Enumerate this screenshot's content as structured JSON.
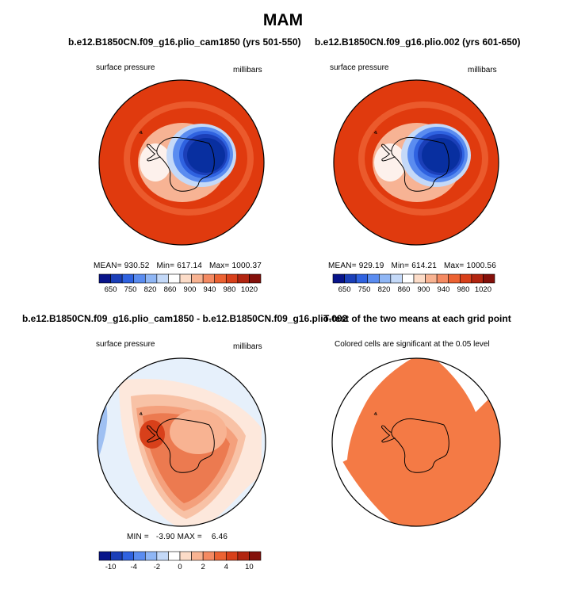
{
  "main_title": "MAM",
  "colors": {
    "ocean": "#e03a0e",
    "ring": "#eb5a2c",
    "land_white": "#fdf1ec",
    "ant_core": "#082fa0",
    "sig_fill": "#f47a45",
    "coast": "#000000"
  },
  "chart_data": [
    {
      "type": "heatmap",
      "title": "b.e12.B1850CN.f09_g16.plio_cam1850 (yrs 501-550)",
      "left_label": "surface pressure",
      "right_label": "millibars",
      "stats": {
        "mean_label": "MEAN=",
        "mean": "930.52",
        "min_label": "Min=",
        "min": "617.14",
        "max_label": "Max=",
        "max": "1000.37"
      },
      "colorbar": {
        "colors": [
          "#08148a",
          "#1b3fb8",
          "#2f62e0",
          "#5a8cf0",
          "#8fb6f5",
          "#c4d9f8",
          "#ffffff",
          "#fcdcc8",
          "#f8b392",
          "#f48a62",
          "#ec6232",
          "#d8401a",
          "#b22510",
          "#84100a"
        ],
        "ticks": [
          "650",
          "750",
          "820",
          "860",
          "900",
          "940",
          "980",
          "1020"
        ]
      }
    },
    {
      "type": "heatmap",
      "title": "b.e12.B1850CN.f09_g16.plio.002 (yrs 601-650)",
      "left_label": "surface pressure",
      "right_label": "millibars",
      "stats": {
        "mean_label": "MEAN=",
        "mean": "929.19",
        "min_label": "Min=",
        "min": "614.21",
        "max_label": "Max=",
        "max": "1000.56"
      },
      "colorbar": {
        "colors": [
          "#08148a",
          "#1b3fb8",
          "#2f62e0",
          "#5a8cf0",
          "#8fb6f5",
          "#c4d9f8",
          "#ffffff",
          "#fcdcc8",
          "#f8b392",
          "#f48a62",
          "#ec6232",
          "#d8401a",
          "#b22510",
          "#84100a"
        ],
        "ticks": [
          "650",
          "750",
          "820",
          "860",
          "900",
          "940",
          "980",
          "1020"
        ]
      }
    },
    {
      "type": "heatmap",
      "title": "b.e12.B1850CN.f09_g16.plio_cam1850 - b.e12.B1850CN.f09_g16.plio.002",
      "left_label": "surface pressure",
      "right_label": "millibars",
      "stats": {
        "min_label": "MIN =",
        "min": "-3.90",
        "max_label": "MAX =",
        "max": "6.46"
      },
      "colorbar": {
        "colors": [
          "#08148a",
          "#1b3fb8",
          "#2f62e0",
          "#5a8cf0",
          "#8fb6f5",
          "#c4d9f8",
          "#ffffff",
          "#fcdcc8",
          "#f8b392",
          "#f48a62",
          "#ec6232",
          "#d8401a",
          "#b22510",
          "#84100a"
        ],
        "ticks": [
          "-10",
          "-4",
          "-2",
          "0",
          "2",
          "4",
          "10"
        ]
      }
    },
    {
      "type": "heatmap",
      "title": "T-test of the two means at each grid point",
      "subtitle": "Colored cells are significant at the 0.05 level"
    }
  ]
}
